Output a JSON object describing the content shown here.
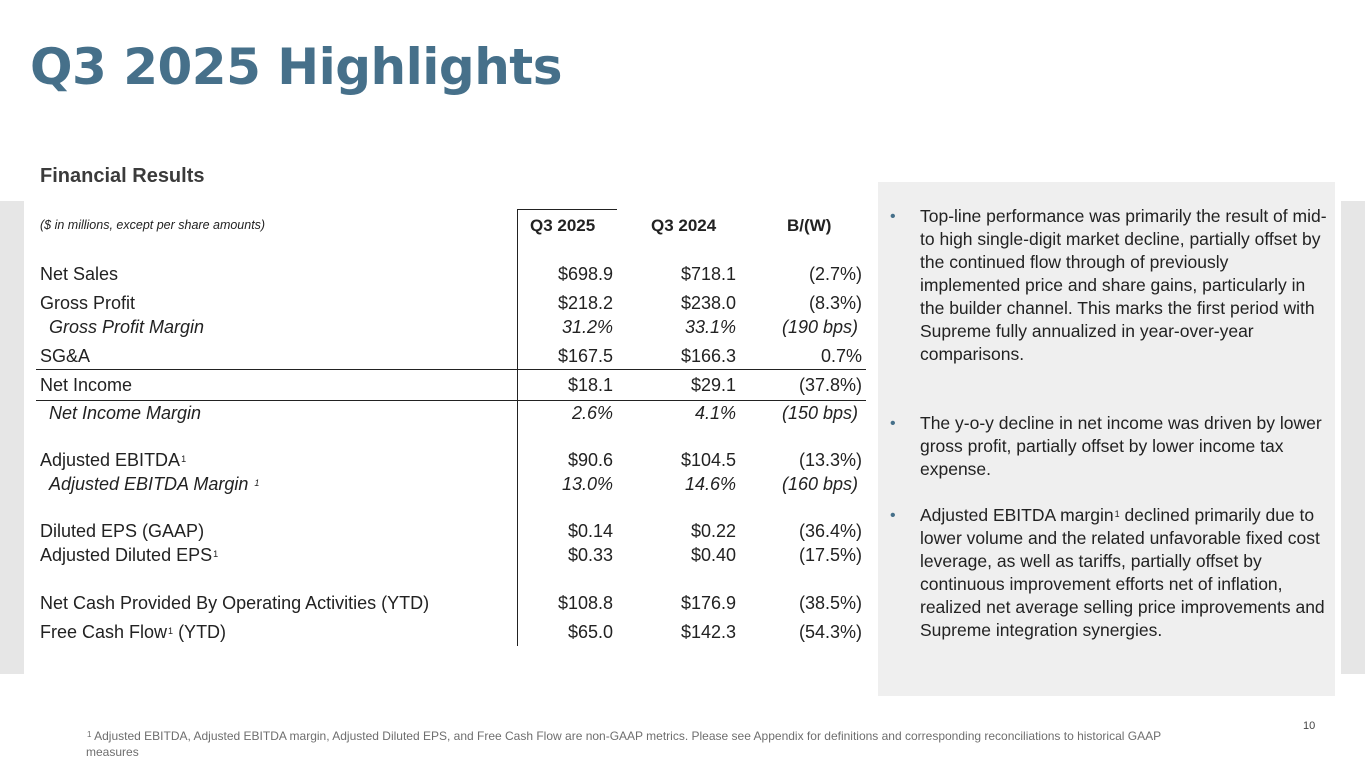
{
  "title": "Q3 2025 Highlights",
  "section_title": "Financial Results",
  "units_note": "($ in millions, except per share amounts)",
  "columns": [
    "Q3 2025",
    "Q3 2024",
    "B/(W)"
  ],
  "rows": [
    {
      "label": "Net Sales",
      "sup": "",
      "suffix": "",
      "v1": "$698.9",
      "v2": "$718.1",
      "v3": "(2.7%)"
    },
    {
      "label": "Gross Profit",
      "sup": "",
      "suffix": "",
      "v1": "$218.2",
      "v2": "$238.0",
      "v3": "(8.3%)"
    },
    {
      "label": "Gross Profit Margin",
      "sup": "",
      "suffix": "",
      "v1": "31.2%",
      "v2": "33.1%",
      "v3": "(190 bps)"
    },
    {
      "label": "SG&A",
      "sup": "",
      "suffix": "",
      "v1": "$167.5",
      "v2": "$166.3",
      "v3": "0.7%"
    },
    {
      "label": "Net Income",
      "sup": "",
      "suffix": "",
      "v1": "$18.1",
      "v2": "$29.1",
      "v3": "(37.8%)"
    },
    {
      "label": "Net Income Margin",
      "sup": "",
      "suffix": "",
      "v1": "2.6%",
      "v2": "4.1%",
      "v3": "(150 bps)"
    },
    {
      "label": "Adjusted EBITDA",
      "sup": "1",
      "suffix": "",
      "v1": "$90.6",
      "v2": "$104.5",
      "v3": "(13.3%)"
    },
    {
      "label": "Adjusted EBITDA Margin ",
      "sup": "1",
      "suffix": "",
      "v1": "13.0%",
      "v2": "14.6%",
      "v3": "(160 bps)"
    },
    {
      "label": "Diluted EPS (GAAP)",
      "sup": "",
      "suffix": "",
      "v1": "$0.14",
      "v2": "$0.22",
      "v3": "(36.4%)"
    },
    {
      "label": "Adjusted Diluted EPS",
      "sup": "1",
      "suffix": "",
      "v1": "$0.33",
      "v2": "$0.40",
      "v3": "(17.5%)"
    },
    {
      "label": "Net Cash Provided By Operating Activities (YTD)",
      "sup": "",
      "suffix": "",
      "v1": "$108.8",
      "v2": "$176.9",
      "v3": "(38.5%)"
    },
    {
      "label": "Free Cash Flow",
      "sup": "1",
      "suffix": " (YTD)",
      "v1": "$65.0",
      "v2": "$142.3",
      "v3": "(54.3%)"
    }
  ],
  "bullets": [
    {
      "text": "Top-line performance was primarily the result of mid- to high single-digit market decline, partially offset by the continued flow through of previously implemented price and share gains, particularly in the builder channel. This marks the first period with Supreme fully annualized in year-over-year comparisons."
    },
    {
      "text": "The y-o-y decline in net income was driven by lower gross profit, partially offset by lower income tax expense."
    },
    {
      "pre": "Adjusted EBITDA margin",
      "sup": "1",
      "text": " declined primarily due to lower volume and the related unfavorable fixed cost leverage, as well as tariffs, partially offset by continuous improvement efforts net of inflation, realized net average selling price improvements and Supreme integration synergies."
    }
  ],
  "footnote": {
    "sup": "1",
    "text": " Adjusted EBITDA, Adjusted EBITDA margin, Adjusted Diluted EPS, and Free Cash Flow are non-GAAP metrics. Please see Appendix for definitions and corresponding reconciliations to historical GAAP measures"
  },
  "page_number": "10",
  "colors": {
    "title": "#46708a",
    "panel_bg": "#efefef",
    "band_bg": "#e6e6e6"
  }
}
